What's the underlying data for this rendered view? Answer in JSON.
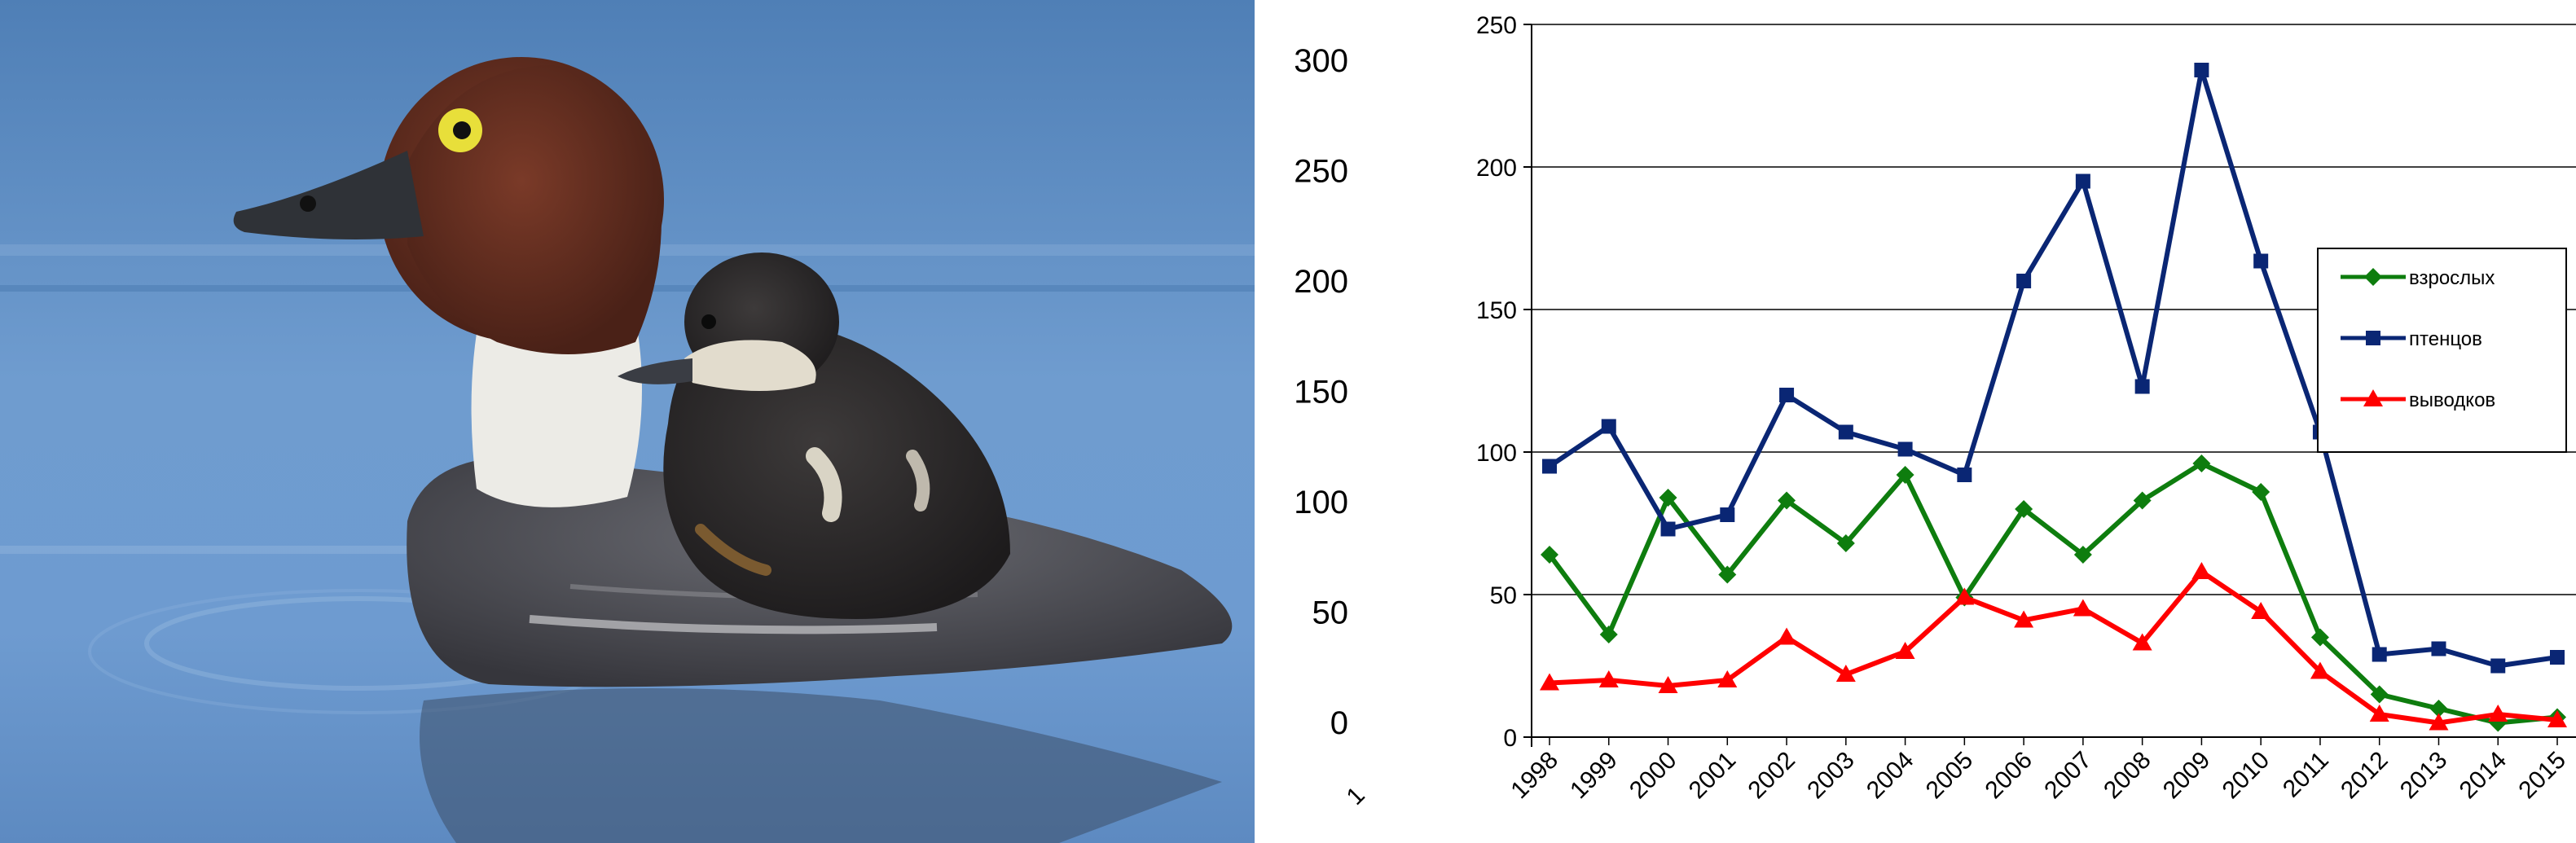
{
  "photo": {
    "subject": "common-goldeneye-female-with-duckling",
    "colors": {
      "water": "#5e8fc4",
      "head": "#5e2c1f",
      "eye": "#e8df3a",
      "body": "#4a4b52",
      "neck": "#ecebe6"
    }
  },
  "chart_data": {
    "type": "line",
    "title": "",
    "xlabel": "",
    "ylabel": "",
    "categories": [
      "1998",
      "1999",
      "2000",
      "2001",
      "2002",
      "2003",
      "2004",
      "2005",
      "2006",
      "2007",
      "2008",
      "2009",
      "2010",
      "2011",
      "2012",
      "2013",
      "2014",
      "2015"
    ],
    "y_primary": {
      "range": [
        0,
        250
      ],
      "ticks": [
        "0",
        "50",
        "100",
        "150",
        "200",
        "250"
      ],
      "gridlines": true
    },
    "y_secondary": {
      "range": [
        0,
        300
      ],
      "ticks": [
        "0",
        "50",
        "100",
        "150",
        "200",
        "250",
        "300"
      ]
    },
    "stray_label": "1",
    "legend": {
      "placement": "right"
    },
    "series": [
      {
        "name": "взрослых",
        "color": "#0e7d0e",
        "marker": "diamond",
        "values": [
          64,
          36,
          84,
          57,
          83,
          68,
          92,
          49,
          80,
          64,
          83,
          96,
          86,
          35,
          15,
          10,
          5,
          7
        ]
      },
      {
        "name": "птенцов",
        "color": "#0a2674",
        "marker": "square",
        "values": [
          95,
          109,
          73,
          78,
          120,
          107,
          101,
          92,
          160,
          195,
          123,
          234,
          167,
          107,
          29,
          31,
          25,
          28
        ]
      },
      {
        "name": "выводков",
        "color": "#ff0000",
        "marker": "triangle",
        "values": [
          19,
          20,
          18,
          20,
          35,
          22,
          30,
          49,
          41,
          45,
          33,
          58,
          44,
          23,
          8,
          5,
          8,
          6
        ]
      }
    ]
  }
}
